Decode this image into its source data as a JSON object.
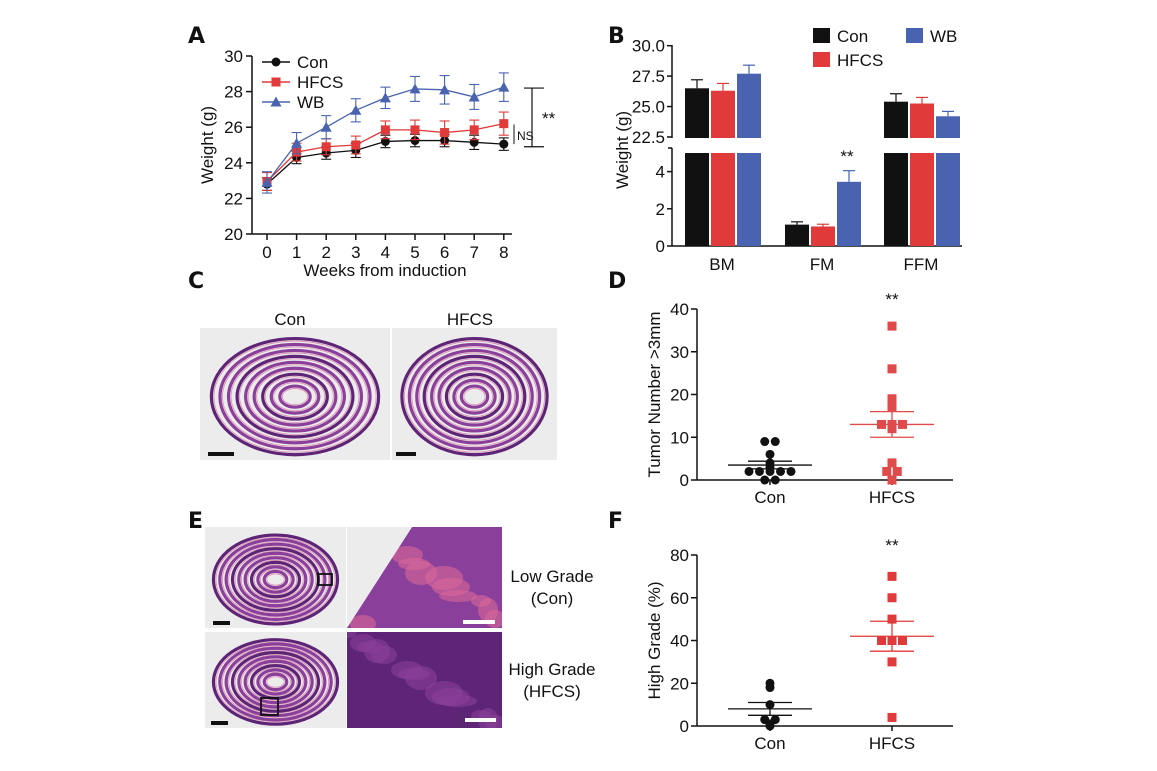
{
  "panels": {
    "A": "A",
    "B": "B",
    "C": "C",
    "D": "D",
    "E": "E",
    "F": "F"
  },
  "histology": {
    "C": {
      "left_label": "Con",
      "right_label": "HFCS"
    },
    "E": {
      "row1_label_1": "Low Grade",
      "row1_label_2": "(Con)",
      "row2_label_1": "High Grade",
      "row2_label_2": "(HFCS)"
    },
    "colors": {
      "tissue": "#8a3f9a",
      "tissue_dark": "#5e2577",
      "stroma": "#d9679a",
      "background": "#ececec"
    }
  },
  "chart_data": [
    {
      "panel": "A",
      "type": "line",
      "xlabel": "Weeks from induction",
      "ylabel": "Weight (g)",
      "ylim": [
        20,
        30
      ],
      "yticks": [
        "20",
        "22",
        "24",
        "26",
        "28",
        "30"
      ],
      "xticks": [
        "0",
        "1",
        "2",
        "3",
        "4",
        "5",
        "6",
        "7",
        "8"
      ],
      "x": [
        0,
        1,
        2,
        3,
        4,
        5,
        6,
        7,
        8
      ],
      "legend": "top-left",
      "grid": false,
      "series": [
        {
          "name": "Con",
          "color": "#111111",
          "marker": "circle",
          "values": [
            22.8,
            24.3,
            24.55,
            24.7,
            25.2,
            25.25,
            25.25,
            25.15,
            25.05
          ],
          "errors": [
            0.35,
            0.35,
            0.35,
            0.4,
            0.35,
            0.35,
            0.35,
            0.4,
            0.35
          ]
        },
        {
          "name": "HFCS",
          "color": "#e03a3a",
          "marker": "square",
          "values": [
            22.95,
            24.6,
            24.9,
            25.0,
            25.85,
            25.85,
            25.7,
            25.85,
            26.2
          ],
          "errors": [
            0.5,
            0.5,
            0.45,
            0.5,
            0.5,
            0.55,
            0.65,
            0.55,
            0.65
          ]
        },
        {
          "name": "WB",
          "color": "#4a63b0",
          "marker": "triangle",
          "values": [
            22.9,
            25.1,
            26.0,
            26.95,
            27.65,
            28.15,
            28.1,
            27.7,
            28.25
          ],
          "errors": [
            0.6,
            0.6,
            0.65,
            0.65,
            0.6,
            0.7,
            0.8,
            0.7,
            0.8
          ]
        }
      ],
      "annotations": {
        "wb_vs_con": "**",
        "hfcs_vs_con": "NS"
      }
    },
    {
      "panel": "B",
      "type": "bar",
      "ylabel": "Weight (g)",
      "categories": [
        "BM",
        "FM",
        "FFM"
      ],
      "y_axis_break": {
        "lower": [
          0,
          5
        ],
        "upper": [
          22.5,
          30
        ]
      },
      "yticks_lower": [
        "0",
        "2",
        "4"
      ],
      "yticks_upper": [
        "22.5",
        "25.0",
        "27.5",
        "30.0"
      ],
      "legend": "top-right",
      "series": [
        {
          "name": "Con",
          "color": "#111111",
          "values": [
            26.5,
            1.15,
            25.4
          ],
          "errors": [
            0.7,
            0.15,
            0.65
          ]
        },
        {
          "name": "HFCS",
          "color": "#e03a3a",
          "values": [
            26.3,
            1.05,
            25.25
          ],
          "errors": [
            0.6,
            0.12,
            0.5
          ]
        },
        {
          "name": "WB",
          "color": "#4a63b0",
          "values": [
            27.7,
            3.45,
            24.2
          ],
          "errors": [
            0.7,
            0.6,
            0.4
          ]
        }
      ],
      "annotations": {
        "FM_WB": "**"
      }
    },
    {
      "panel": "D",
      "type": "scatter",
      "ylabel": "Tumor Number >3mm",
      "ylim": [
        0,
        40
      ],
      "yticks": [
        "0",
        "10",
        "20",
        "30",
        "40"
      ],
      "categories": [
        "Con",
        "HFCS"
      ],
      "groups": [
        {
          "name": "Con",
          "color": "#111111",
          "marker": "circle",
          "values": [
            9,
            9,
            6,
            4,
            3,
            2,
            2,
            2,
            2,
            2,
            0,
            0
          ],
          "mean": 3.5,
          "sem": 0.9
        },
        {
          "name": "HFCS",
          "color": "#e04a4a",
          "marker": "square",
          "values": [
            36,
            26,
            19,
            17,
            13,
            13,
            13,
            12,
            4,
            2,
            2,
            0
          ],
          "mean": 13,
          "sem": 3
        }
      ],
      "annotations": {
        "HFCS": "**"
      }
    },
    {
      "panel": "F",
      "type": "scatter",
      "ylabel": "High Grade (%)",
      "ylim": [
        0,
        80
      ],
      "yticks": [
        "0",
        "20",
        "40",
        "60",
        "80"
      ],
      "categories": [
        "Con",
        "HFCS"
      ],
      "groups": [
        {
          "name": "Con",
          "color": "#111111",
          "marker": "circle",
          "values": [
            20,
            18,
            10,
            3,
            3,
            1,
            0
          ],
          "mean": 8,
          "sem": 3
        },
        {
          "name": "HFCS",
          "color": "#e03a3a",
          "marker": "square",
          "values": [
            70,
            60,
            50,
            40,
            40,
            40,
            30,
            4
          ],
          "mean": 42,
          "sem": 7
        }
      ],
      "annotations": {
        "HFCS": "**"
      }
    }
  ]
}
